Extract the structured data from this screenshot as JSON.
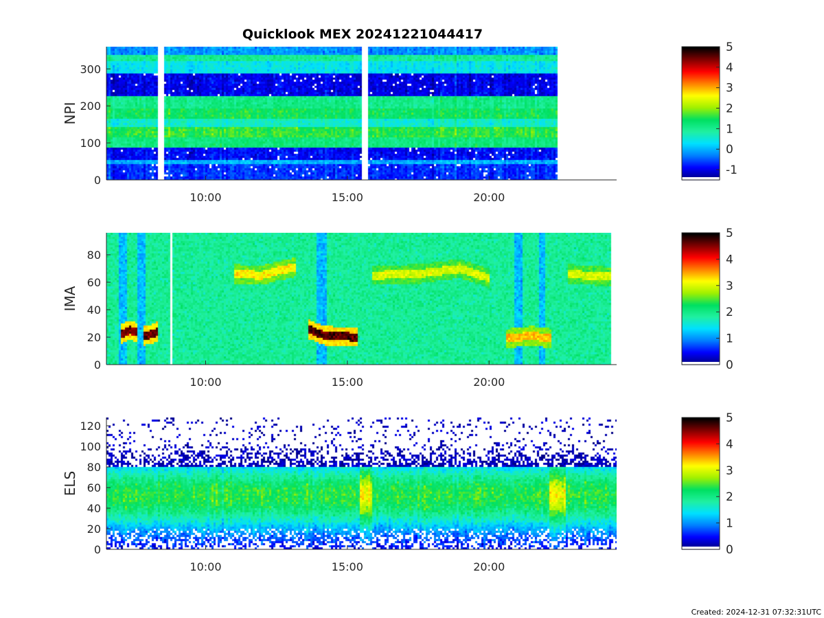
{
  "figure": {
    "title": "Quicklook MEX 20241221044417",
    "created": "Created: 2024-12-31 07:32:31UTC"
  },
  "chart_data": [
    {
      "type": "heatmap",
      "name": "NPI",
      "ylabel": "NPI",
      "xlim": [
        6.5,
        24.5
      ],
      "ylim": [
        0,
        360
      ],
      "xticks": [
        10,
        15,
        20
      ],
      "xtick_labels": [
        "10:00",
        "15:00",
        "20:00"
      ],
      "yticks": [
        0,
        100,
        200,
        300
      ],
      "ytick_labels": [
        "0",
        "100",
        "200",
        "300"
      ],
      "data_range_hours": [
        6.5,
        22.4
      ],
      "gaps_hours": [
        [
          8.3,
          8.55
        ],
        [
          15.5,
          15.7
        ]
      ],
      "colorbar": {
        "ticks": [
          -1,
          0,
          1,
          2,
          3,
          4,
          5
        ],
        "tick_labels": [
          "-1",
          "0",
          "1",
          "2",
          "3",
          "4",
          "5"
        ],
        "range": [
          -1.5,
          5
        ]
      },
      "bands": [
        {
          "y": [
            0,
            40
          ],
          "level": -0.7
        },
        {
          "y": [
            40,
            55
          ],
          "level": 0.0
        },
        {
          "y": [
            55,
            90
          ],
          "level": -0.9
        },
        {
          "y": [
            90,
            115
          ],
          "level": 1.2
        },
        {
          "y": [
            115,
            145
          ],
          "level": 1.6
        },
        {
          "y": [
            145,
            165
          ],
          "level": 0.6
        },
        {
          "y": [
            165,
            195
          ],
          "level": 1.4
        },
        {
          "y": [
            195,
            225
          ],
          "level": 1.1
        },
        {
          "y": [
            225,
            285
          ],
          "level": -1.0
        },
        {
          "y": [
            285,
            320
          ],
          "level": 0.4
        },
        {
          "y": [
            320,
            340
          ],
          "level": 1.0
        },
        {
          "y": [
            340,
            360
          ],
          "level": -0.2
        }
      ]
    },
    {
      "type": "heatmap",
      "name": "IMA",
      "ylabel": "IMA",
      "xlim": [
        6.5,
        24.5
      ],
      "ylim": [
        0,
        96
      ],
      "xticks": [
        10,
        15,
        20
      ],
      "xtick_labels": [
        "10:00",
        "15:00",
        "20:00"
      ],
      "yticks": [
        0,
        20,
        40,
        60,
        80
      ],
      "ytick_labels": [
        "0",
        "20",
        "40",
        "60",
        "80"
      ],
      "data_range_hours": [
        6.5,
        24.3
      ],
      "gaps_hours": [
        [
          8.75,
          8.85
        ]
      ],
      "colorbar": {
        "ticks": [
          0,
          1,
          2,
          3,
          4,
          5
        ],
        "tick_labels": [
          "0",
          "1",
          "2",
          "3",
          "4",
          "5"
        ],
        "range": [
          0,
          5
        ]
      },
      "background_level": 1.9,
      "dark_columns_hours": [
        [
          6.95,
          7.2
        ],
        [
          7.6,
          7.85
        ],
        [
          13.9,
          14.3
        ],
        [
          20.9,
          21.2
        ],
        [
          21.75,
          21.95
        ]
      ],
      "traces": [
        {
          "x": [
            7.0,
            7.3,
            7.6
          ],
          "y": [
            22,
            25,
            23
          ],
          "level": 4.6
        },
        {
          "x": [
            7.8,
            8.1,
            8.3
          ],
          "y": [
            21,
            22,
            24
          ],
          "level": 4.7
        },
        {
          "x": [
            11.0,
            12.0,
            12.5,
            13.2
          ],
          "y": [
            66,
            65,
            68,
            71
          ],
          "level": 3.2
        },
        {
          "x": [
            13.6,
            14.2,
            15.4
          ],
          "y": [
            26,
            21,
            20
          ],
          "level": 4.7
        },
        {
          "x": [
            15.9,
            17.5,
            19.0,
            20.0
          ],
          "y": [
            65,
            66,
            70,
            63
          ],
          "level": 3.0
        },
        {
          "x": [
            20.6,
            21.5,
            22.2
          ],
          "y": [
            19,
            21,
            19
          ],
          "level": 3.4
        },
        {
          "x": [
            22.8,
            23.5,
            24.3
          ],
          "y": [
            66,
            65,
            64
          ],
          "level": 3.0
        }
      ]
    },
    {
      "type": "heatmap",
      "name": "ELS",
      "ylabel": "ELS",
      "xlim": [
        6.5,
        24.5
      ],
      "ylim": [
        0,
        128
      ],
      "xticks": [
        10,
        15,
        20
      ],
      "xtick_labels": [
        "10:00",
        "15:00",
        "20:00"
      ],
      "yticks": [
        0,
        20,
        40,
        60,
        80,
        100,
        120
      ],
      "ytick_labels": [
        "0",
        "20",
        "40",
        "60",
        "80",
        "100",
        "120"
      ],
      "data_range_hours": [
        6.5,
        24.5
      ],
      "colorbar": {
        "ticks": [
          0,
          1,
          2,
          3,
          4,
          5
        ],
        "tick_labels": [
          "0",
          "1",
          "2",
          "3",
          "4",
          "5"
        ],
        "range": [
          0,
          5
        ]
      },
      "peak_center_y": 52,
      "bursts_hours": [
        [
          15.45,
          15.9
        ],
        [
          22.1,
          22.7
        ]
      ]
    }
  ],
  "colors": {
    "axis": "#262626",
    "background": "#ffffff",
    "colormap": [
      "#000080",
      "#0000ff",
      "#0080ff",
      "#00e0ff",
      "#20f0a0",
      "#00e060",
      "#a0f000",
      "#ffff00",
      "#ff8000",
      "#ff0000",
      "#800000",
      "#000000"
    ]
  }
}
